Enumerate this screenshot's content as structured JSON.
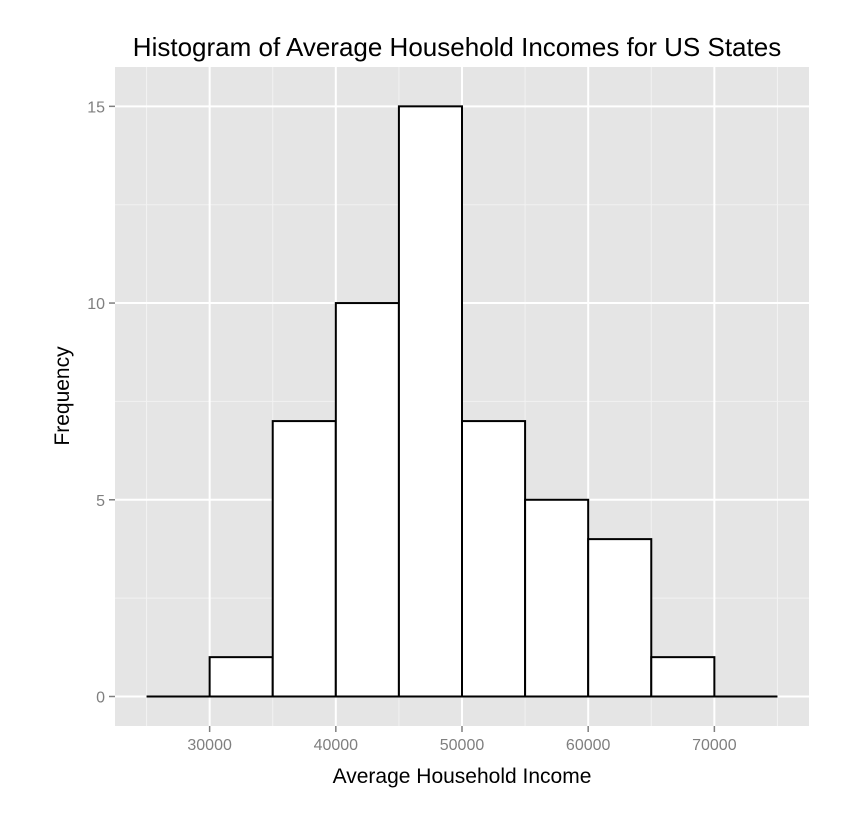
{
  "chart_data": {
    "type": "bar",
    "title": "Histogram of Average Household Incomes for US States",
    "xlabel": "Average Household Income",
    "ylabel": "Frequency",
    "bins": [
      {
        "from": 25000,
        "to": 30000,
        "count": 0
      },
      {
        "from": 30000,
        "to": 35000,
        "count": 1
      },
      {
        "from": 35000,
        "to": 40000,
        "count": 7
      },
      {
        "from": 40000,
        "to": 45000,
        "count": 10
      },
      {
        "from": 45000,
        "to": 50000,
        "count": 15
      },
      {
        "from": 50000,
        "to": 55000,
        "count": 7
      },
      {
        "from": 55000,
        "to": 60000,
        "count": 5
      },
      {
        "from": 60000,
        "to": 65000,
        "count": 4
      },
      {
        "from": 65000,
        "to": 70000,
        "count": 1
      },
      {
        "from": 70000,
        "to": 75000,
        "count": 0
      }
    ],
    "xlim": [
      22500,
      77500
    ],
    "ylim": [
      -0.75,
      16
    ],
    "xticks": [
      "30000",
      "40000",
      "50000",
      "60000",
      "70000"
    ],
    "yticks": [
      "0",
      "5",
      "10",
      "15"
    ],
    "grid": true,
    "colors": {
      "panel_background": "#e5e5e5",
      "grid_major": "#ffffff",
      "grid_minor": "#f2f2f2",
      "bar_fill": "#ffffff",
      "bar_outline": "#000000",
      "tick_label": "#7f7f7f"
    }
  }
}
